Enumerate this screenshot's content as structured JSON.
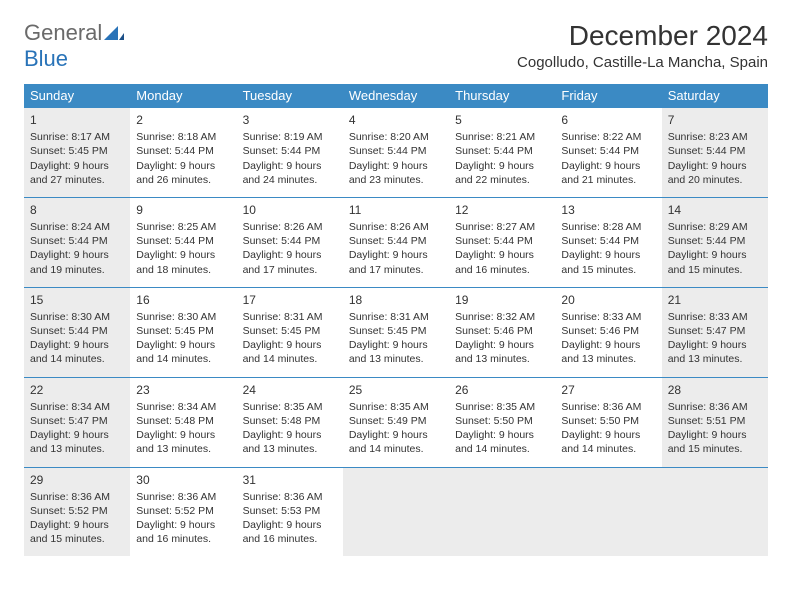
{
  "logo": {
    "word1": "General",
    "word2": "Blue"
  },
  "title": "December 2024",
  "location": "Cogolludo, Castille-La Mancha, Spain",
  "colors": {
    "header_bg": "#3b8ac4",
    "header_text": "#ffffff",
    "border": "#3b8ac4",
    "shaded": "#ececec",
    "body_text": "#333333",
    "logo_gray": "#6a6a6a",
    "logo_blue": "#2973b8",
    "page_bg": "#ffffff"
  },
  "weekdays": [
    "Sunday",
    "Monday",
    "Tuesday",
    "Wednesday",
    "Thursday",
    "Friday",
    "Saturday"
  ],
  "weeks": [
    [
      {
        "n": "1",
        "sunrise": "8:17 AM",
        "sunset": "5:45 PM",
        "day_h": "9",
        "day_m": "27",
        "shaded": true
      },
      {
        "n": "2",
        "sunrise": "8:18 AM",
        "sunset": "5:44 PM",
        "day_h": "9",
        "day_m": "26",
        "shaded": false
      },
      {
        "n": "3",
        "sunrise": "8:19 AM",
        "sunset": "5:44 PM",
        "day_h": "9",
        "day_m": "24",
        "shaded": false
      },
      {
        "n": "4",
        "sunrise": "8:20 AM",
        "sunset": "5:44 PM",
        "day_h": "9",
        "day_m": "23",
        "shaded": false
      },
      {
        "n": "5",
        "sunrise": "8:21 AM",
        "sunset": "5:44 PM",
        "day_h": "9",
        "day_m": "22",
        "shaded": false
      },
      {
        "n": "6",
        "sunrise": "8:22 AM",
        "sunset": "5:44 PM",
        "day_h": "9",
        "day_m": "21",
        "shaded": false
      },
      {
        "n": "7",
        "sunrise": "8:23 AM",
        "sunset": "5:44 PM",
        "day_h": "9",
        "day_m": "20",
        "shaded": true
      }
    ],
    [
      {
        "n": "8",
        "sunrise": "8:24 AM",
        "sunset": "5:44 PM",
        "day_h": "9",
        "day_m": "19",
        "shaded": true
      },
      {
        "n": "9",
        "sunrise": "8:25 AM",
        "sunset": "5:44 PM",
        "day_h": "9",
        "day_m": "18",
        "shaded": false
      },
      {
        "n": "10",
        "sunrise": "8:26 AM",
        "sunset": "5:44 PM",
        "day_h": "9",
        "day_m": "17",
        "shaded": false
      },
      {
        "n": "11",
        "sunrise": "8:26 AM",
        "sunset": "5:44 PM",
        "day_h": "9",
        "day_m": "17",
        "shaded": false
      },
      {
        "n": "12",
        "sunrise": "8:27 AM",
        "sunset": "5:44 PM",
        "day_h": "9",
        "day_m": "16",
        "shaded": false
      },
      {
        "n": "13",
        "sunrise": "8:28 AM",
        "sunset": "5:44 PM",
        "day_h": "9",
        "day_m": "15",
        "shaded": false
      },
      {
        "n": "14",
        "sunrise": "8:29 AM",
        "sunset": "5:44 PM",
        "day_h": "9",
        "day_m": "15",
        "shaded": true
      }
    ],
    [
      {
        "n": "15",
        "sunrise": "8:30 AM",
        "sunset": "5:44 PM",
        "day_h": "9",
        "day_m": "14",
        "shaded": true
      },
      {
        "n": "16",
        "sunrise": "8:30 AM",
        "sunset": "5:45 PM",
        "day_h": "9",
        "day_m": "14",
        "shaded": false
      },
      {
        "n": "17",
        "sunrise": "8:31 AM",
        "sunset": "5:45 PM",
        "day_h": "9",
        "day_m": "14",
        "shaded": false
      },
      {
        "n": "18",
        "sunrise": "8:31 AM",
        "sunset": "5:45 PM",
        "day_h": "9",
        "day_m": "13",
        "shaded": false
      },
      {
        "n": "19",
        "sunrise": "8:32 AM",
        "sunset": "5:46 PM",
        "day_h": "9",
        "day_m": "13",
        "shaded": false
      },
      {
        "n": "20",
        "sunrise": "8:33 AM",
        "sunset": "5:46 PM",
        "day_h": "9",
        "day_m": "13",
        "shaded": false
      },
      {
        "n": "21",
        "sunrise": "8:33 AM",
        "sunset": "5:47 PM",
        "day_h": "9",
        "day_m": "13",
        "shaded": true
      }
    ],
    [
      {
        "n": "22",
        "sunrise": "8:34 AM",
        "sunset": "5:47 PM",
        "day_h": "9",
        "day_m": "13",
        "shaded": true
      },
      {
        "n": "23",
        "sunrise": "8:34 AM",
        "sunset": "5:48 PM",
        "day_h": "9",
        "day_m": "13",
        "shaded": false
      },
      {
        "n": "24",
        "sunrise": "8:35 AM",
        "sunset": "5:48 PM",
        "day_h": "9",
        "day_m": "13",
        "shaded": false
      },
      {
        "n": "25",
        "sunrise": "8:35 AM",
        "sunset": "5:49 PM",
        "day_h": "9",
        "day_m": "14",
        "shaded": false
      },
      {
        "n": "26",
        "sunrise": "8:35 AM",
        "sunset": "5:50 PM",
        "day_h": "9",
        "day_m": "14",
        "shaded": false
      },
      {
        "n": "27",
        "sunrise": "8:36 AM",
        "sunset": "5:50 PM",
        "day_h": "9",
        "day_m": "14",
        "shaded": false
      },
      {
        "n": "28",
        "sunrise": "8:36 AM",
        "sunset": "5:51 PM",
        "day_h": "9",
        "day_m": "15",
        "shaded": true
      }
    ],
    [
      {
        "n": "29",
        "sunrise": "8:36 AM",
        "sunset": "5:52 PM",
        "day_h": "9",
        "day_m": "15",
        "shaded": true
      },
      {
        "n": "30",
        "sunrise": "8:36 AM",
        "sunset": "5:52 PM",
        "day_h": "9",
        "day_m": "16",
        "shaded": false
      },
      {
        "n": "31",
        "sunrise": "8:36 AM",
        "sunset": "5:53 PM",
        "day_h": "9",
        "day_m": "16",
        "shaded": false
      },
      {
        "empty": true,
        "shaded": true
      },
      {
        "empty": true,
        "shaded": true
      },
      {
        "empty": true,
        "shaded": true
      },
      {
        "empty": true,
        "shaded": true
      }
    ]
  ],
  "labels": {
    "sunrise": "Sunrise:",
    "sunset": "Sunset:",
    "daylight": "Daylight:",
    "hours": "hours",
    "and": "and",
    "minutes": "minutes."
  }
}
